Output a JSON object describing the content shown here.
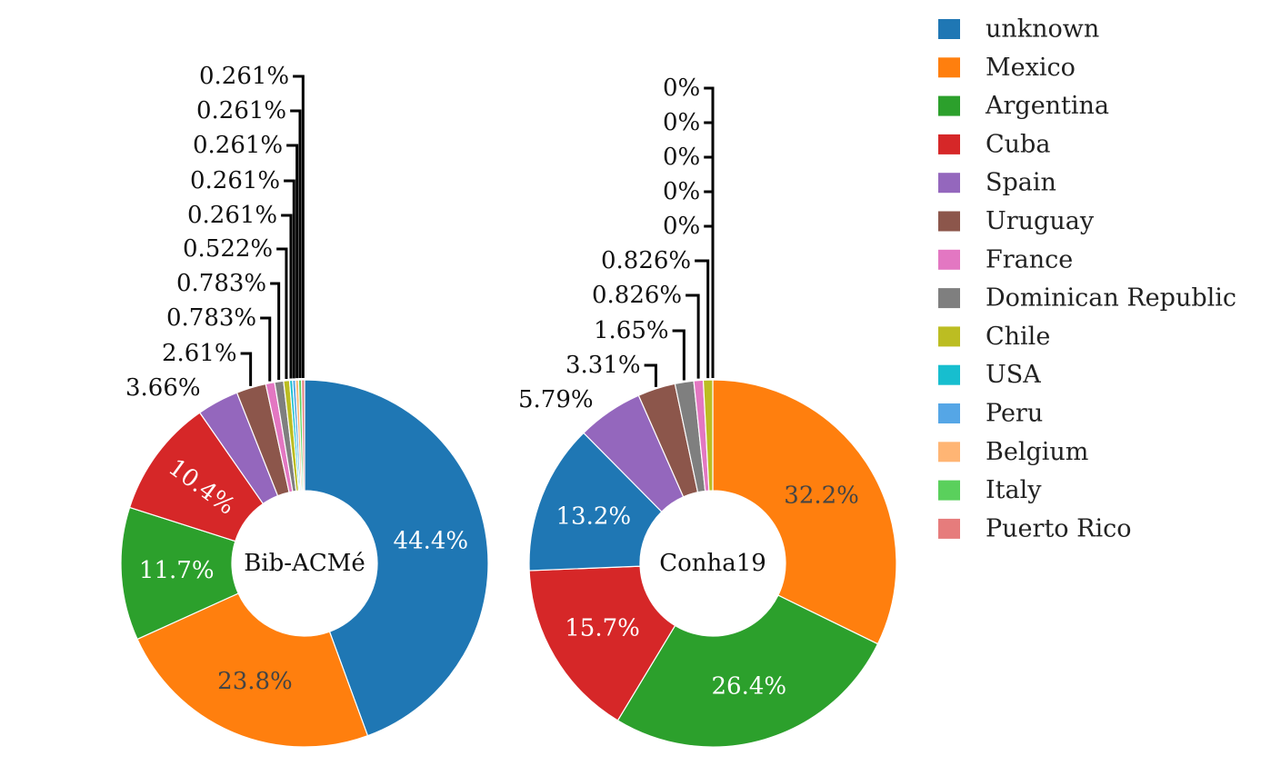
{
  "chart_data": {
    "type": "pie",
    "style": "donut",
    "categories": [
      "unknown",
      "Mexico",
      "Argentina",
      "Cuba",
      "Spain",
      "Uruguay",
      "France",
      "Dominican Republic",
      "Chile",
      "USA",
      "Peru",
      "Belgium",
      "Italy",
      "Puerto Rico"
    ],
    "colors": [
      "#1f77b4",
      "#ff7f0e",
      "#2ca02c",
      "#d62728",
      "#9467bd",
      "#8c564b",
      "#e377c2",
      "#7f7f7f",
      "#bcbd22",
      "#17becf",
      "#55a6e6",
      "#ffb574",
      "#5ad05c",
      "#e67c7c"
    ],
    "legend_position": "top-right",
    "pies": [
      {
        "name": "Bib-ACMé",
        "order": [
          "unknown",
          "Mexico",
          "Argentina",
          "Cuba",
          "Spain",
          "Uruguay",
          "France",
          "Dominican Republic",
          "Chile",
          "USA",
          "Peru",
          "Belgium",
          "Italy",
          "Puerto Rico"
        ],
        "values": [
          44.4,
          23.8,
          11.7,
          10.4,
          3.66,
          2.61,
          0.783,
          0.783,
          0.522,
          0.261,
          0.261,
          0.261,
          0.261,
          0.261
        ],
        "labels": [
          "44.4%",
          "23.8%",
          "11.7%",
          "10.4%",
          "3.66%",
          "2.61%",
          "0.783%",
          "0.783%",
          "0.522%",
          "0.261%",
          "0.261%",
          "0.261%",
          "0.261%",
          "0.261%"
        ]
      },
      {
        "name": "Conha19",
        "order": [
          "Mexico",
          "Argentina",
          "Cuba",
          "unknown",
          "Spain",
          "Uruguay",
          "Dominican Republic",
          "France",
          "Chile",
          "USA",
          "Peru",
          "Belgium",
          "Italy",
          "Puerto Rico"
        ],
        "values": [
          32.2,
          26.4,
          15.7,
          13.2,
          5.79,
          3.31,
          1.65,
          0.826,
          0.826,
          0,
          0,
          0,
          0,
          0
        ],
        "labels": [
          "32.2%",
          "26.4%",
          "15.7%",
          "13.2%",
          "5.79%",
          "3.31%",
          "1.65%",
          "0.826%",
          "0.826%",
          "0%",
          "0%",
          "0%",
          "0%",
          "0%"
        ]
      }
    ]
  }
}
